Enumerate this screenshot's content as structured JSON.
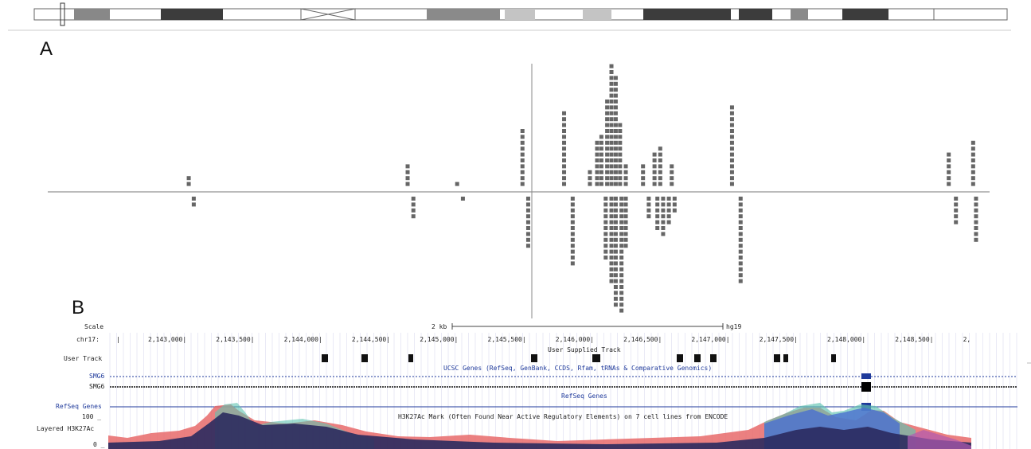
{
  "panel_a": {
    "letter": "A",
    "chart_data": {
      "type": "scatter",
      "title": "",
      "xlabel": "",
      "ylabel": "",
      "description_free": true,
      "columns_above": [
        {
          "x": 2143315,
          "count": 2
        },
        {
          "x": 2144840,
          "count": 4
        },
        {
          "x": 2145185,
          "count": 1
        },
        {
          "x": 2145640,
          "count": 10
        },
        {
          "x": 2145930,
          "count": 13
        },
        {
          "x": 2146110,
          "count": 3
        },
        {
          "x": 2146160,
          "count": 8
        },
        {
          "x": 2146190,
          "count": 9
        },
        {
          "x": 2146230,
          "count": 15
        },
        {
          "x": 2146260,
          "count": 21
        },
        {
          "x": 2146290,
          "count": 19
        },
        {
          "x": 2146320,
          "count": 11
        },
        {
          "x": 2146360,
          "count": 4
        },
        {
          "x": 2146480,
          "count": 4
        },
        {
          "x": 2146560,
          "count": 6
        },
        {
          "x": 2146600,
          "count": 7
        },
        {
          "x": 2146680,
          "count": 4
        },
        {
          "x": 2147100,
          "count": 14
        },
        {
          "x": 2148610,
          "count": 6
        },
        {
          "x": 2148780,
          "count": 8
        }
      ],
      "columns_below": [
        {
          "x": 2143350,
          "count": 2
        },
        {
          "x": 2144880,
          "count": 4
        },
        {
          "x": 2145225,
          "count": 1
        },
        {
          "x": 2145680,
          "count": 9
        },
        {
          "x": 2145990,
          "count": 12
        },
        {
          "x": 2146220,
          "count": 11
        },
        {
          "x": 2146260,
          "count": 15
        },
        {
          "x": 2146290,
          "count": 19
        },
        {
          "x": 2146330,
          "count": 20
        },
        {
          "x": 2146360,
          "count": 9
        },
        {
          "x": 2146520,
          "count": 4
        },
        {
          "x": 2146580,
          "count": 6
        },
        {
          "x": 2146620,
          "count": 7
        },
        {
          "x": 2146660,
          "count": 5
        },
        {
          "x": 2146700,
          "count": 3
        },
        {
          "x": 2147160,
          "count": 15
        },
        {
          "x": 2148660,
          "count": 5
        },
        {
          "x": 2148800,
          "count": 8
        }
      ]
    }
  },
  "panel_b": {
    "letter": "B",
    "scale_label": "Scale",
    "chrom_label": "chr17:",
    "scale_text": "2 kb",
    "assembly": "hg19",
    "coord_ticks": [
      "2,143,000",
      "2,143,500",
      "2,144,000",
      "2,144,500",
      "2,145,000",
      "2,145,500",
      "2,146,000",
      "2,146,500",
      "2,147,000",
      "2,147,500",
      "2,148,000",
      "2,148,500",
      "2,"
    ],
    "user_track_label": "User Track",
    "user_track_title": "User Supplied Track",
    "ucsc_title": "UCSC Genes (RefSeq, GenBank, CCDS, Rfam, tRNAs & Comparative Genomics)",
    "gene1": "SMG6",
    "gene2": "SMG6",
    "refseq_title": "RefSeq Genes",
    "refseq_label": "RefSeq Genes",
    "h3k27_title": "H3K27Ac Mark (Often Found Near Active Regulatory Elements) on 7 cell lines from ENCODE",
    "h3k27_label": "Layered H3K27Ac",
    "h3k27_max": "100 _",
    "h3k27_min": "0 _",
    "colors": {
      "gene_blue": "#1f3a9b",
      "track_pink": "#e86a6a",
      "track_navy": "#2b2a5e",
      "track_teal": "#5fc3b0",
      "track_blue": "#4a6fd0"
    }
  }
}
